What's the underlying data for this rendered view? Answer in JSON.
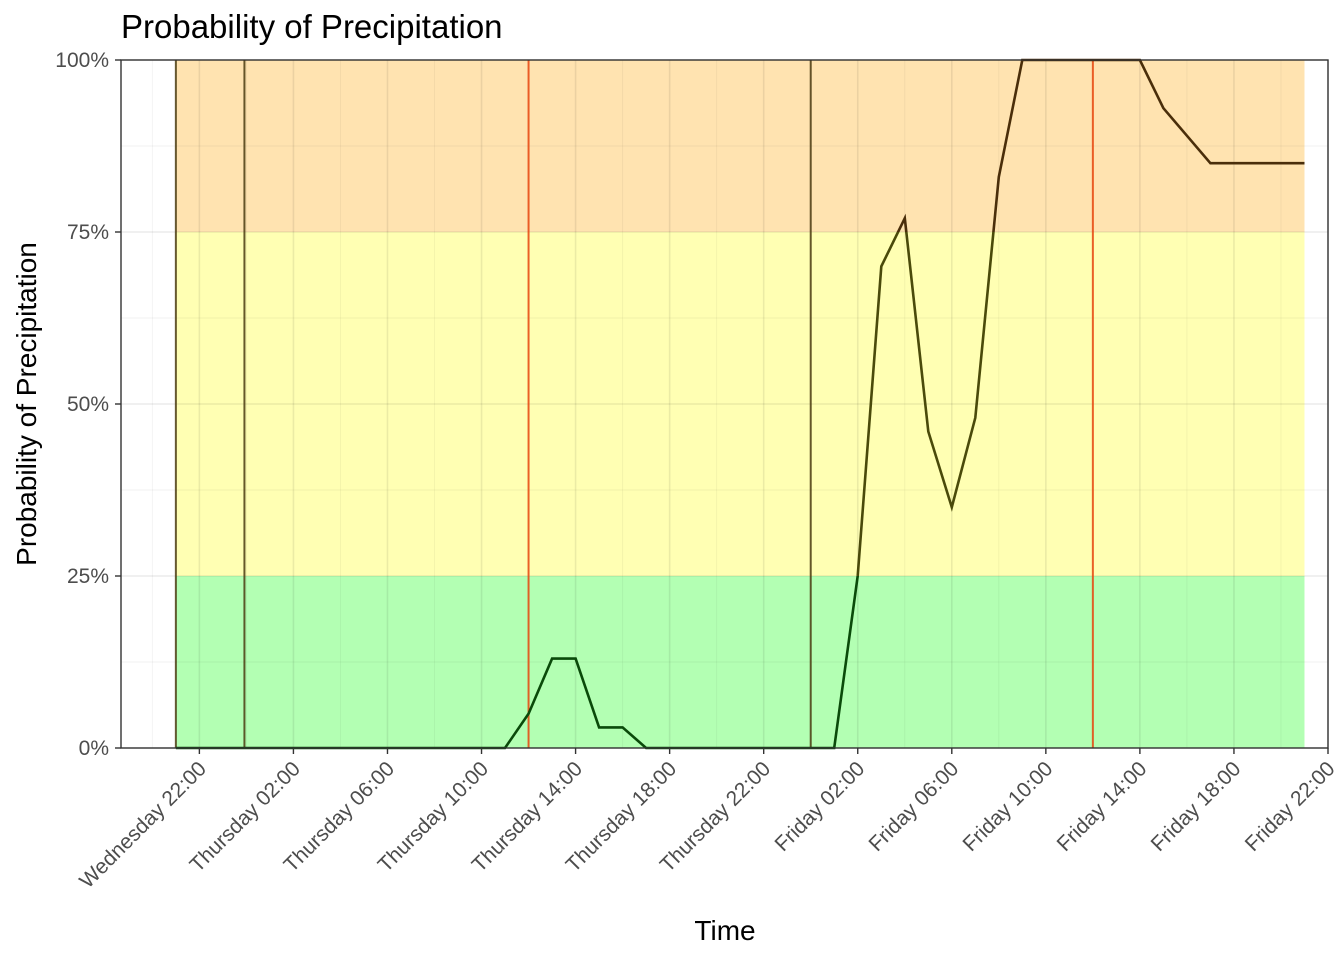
{
  "chart_data": {
    "type": "line",
    "title": "Probability of Precipitation",
    "xlabel": "Time",
    "ylabel": "Probability of Precipitation",
    "ylim": [
      0,
      100
    ],
    "y_ticks": [
      "0%",
      "25%",
      "50%",
      "75%",
      "100%"
    ],
    "y_tick_values": [
      0,
      25,
      50,
      75,
      100
    ],
    "xlim": [
      "Wednesday 18:40",
      "Friday 22:00"
    ],
    "x_ticks": [
      "Wednesday 22:00",
      "Thursday 02:00",
      "Thursday 06:00",
      "Thursday 10:00",
      "Thursday 14:00",
      "Thursday 18:00",
      "Thursday 22:00",
      "Friday 02:00",
      "Friday 06:00",
      "Friday 10:00",
      "Friday 14:00",
      "Friday 18:00",
      "Friday 22:00"
    ],
    "x_tick_values": [
      22,
      26,
      30,
      34,
      38,
      42,
      46,
      50,
      54,
      58,
      62,
      66,
      70
    ],
    "grid": true,
    "bands": [
      {
        "from": 0,
        "to": 25,
        "color": "#b3ffb3"
      },
      {
        "from": 25,
        "to": 75,
        "color": "#ffffb3"
      },
      {
        "from": 75,
        "to": 100,
        "color": "#ffe3b0"
      }
    ],
    "band_x_range": [
      "Wednesday 21:00",
      "Friday 21:00"
    ],
    "vertical_lines": [
      {
        "x": "Wednesday 21:00",
        "color": "#4a3b10"
      },
      {
        "x": "Wednesday 23:55",
        "color": "#4a3b10"
      },
      {
        "x": "Thursday 12:00",
        "color": "#e8470f"
      },
      {
        "x": "Friday 00:00",
        "color": "#4a3b10"
      },
      {
        "x": "Friday 12:00",
        "color": "#e8470f"
      }
    ],
    "series": [
      {
        "x": [
          "Wednesday 21:00",
          "Thursday 11:00",
          "Thursday 12:00",
          "Thursday 13:00",
          "Thursday 14:00",
          "Thursday 15:00",
          "Thursday 16:00",
          "Thursday 17:00",
          "Thursday 18:00",
          "Friday 01:00",
          "Friday 02:00",
          "Friday 03:00",
          "Friday 04:00",
          "Friday 05:00",
          "Friday 06:00",
          "Friday 07:00",
          "Friday 08:00",
          "Friday 09:00",
          "Friday 10:00",
          "Friday 11:00",
          "Friday 12:00",
          "Friday 13:00",
          "Friday 14:00",
          "Friday 15:00",
          "Friday 16:00",
          "Friday 17:00",
          "Friday 18:00",
          "Friday 19:00",
          "Friday 20:00",
          "Friday 21:00"
        ],
        "values": [
          0,
          0,
          5,
          13,
          13,
          3,
          3,
          0,
          0,
          0,
          25,
          70,
          77,
          46,
          35,
          48,
          83,
          100,
          100,
          100,
          100,
          100,
          100,
          93,
          89,
          85,
          85,
          85,
          85,
          85
        ]
      }
    ],
    "line_colors": {
      "low": "#0a4a0a",
      "mid": "#4a4a0a",
      "high": "#4a2e0a"
    }
  }
}
